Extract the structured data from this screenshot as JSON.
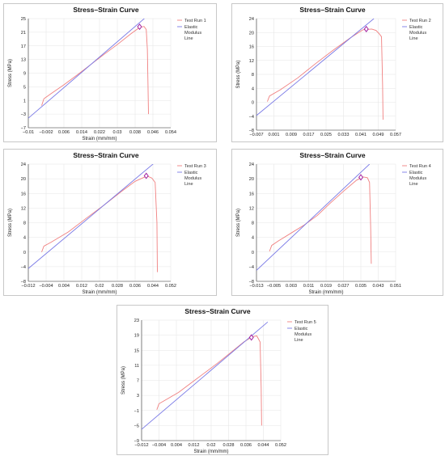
{
  "chart_data": [
    {
      "type": "line",
      "title": "Stress–Strain Curve",
      "xlabel": "Strain (mm/mm)",
      "ylabel": "Stress (MPa)",
      "xticks": [
        "−0.01",
        "−0.002",
        "0.006",
        "0.014",
        "0.022",
        "0.03",
        "0.038",
        "0.046",
        "0.054"
      ],
      "yticks": [
        "25",
        "21",
        "17",
        "13",
        "9",
        "5",
        "1",
        "−3",
        "−7"
      ],
      "xlim": [
        -0.01,
        0.054
      ],
      "ylim": [
        -7,
        25
      ],
      "legend_position": "top-right",
      "series": [
        {
          "name": "Test Run 1",
          "color": "#f08080",
          "x": [
            -0.004,
            -0.003,
            0.0,
            0.006,
            0.012,
            0.018,
            0.024,
            0.03,
            0.036,
            0.04,
            0.042,
            0.043,
            0.0435,
            0.0438,
            0.044
          ],
          "y": [
            -0.5,
            1.5,
            2.9,
            5.6,
            8.5,
            11.5,
            14.5,
            17.4,
            20.5,
            22.4,
            22.7,
            21.8,
            16.0,
            5.0,
            -3.0
          ]
        },
        {
          "name": "Elastic Modulus Line",
          "color": "#7a7ae6",
          "x": [
            -0.01,
            0.043
          ],
          "y": [
            -4.2,
            25.5
          ]
        }
      ],
      "marker": {
        "x": 0.04,
        "y": 22.6,
        "shape": "diamond",
        "color": "#a020a0"
      }
    },
    {
      "type": "line",
      "title": "Stress–Strain Curve",
      "xlabel": "",
      "ylabel": "Stress (MPa)",
      "xticks": [
        "−0.007",
        "0.001",
        "0.009",
        "0.017",
        "0.025",
        "0.033",
        "0.041",
        "0.049",
        "0.057"
      ],
      "yticks": [
        "24",
        "20",
        "16",
        "12",
        "8",
        "4",
        "0",
        "−4",
        "−8"
      ],
      "xlim": [
        -0.007,
        0.057
      ],
      "ylim": [
        -8,
        24
      ],
      "legend_position": "top-right",
      "series": [
        {
          "name": "Test Run 2",
          "color": "#f08080",
          "x": [
            -0.002,
            -0.001,
            0.004,
            0.012,
            0.02,
            0.028,
            0.036,
            0.042,
            0.046,
            0.048,
            0.0495,
            0.0505,
            0.051,
            0.0512
          ],
          "y": [
            0.2,
            1.8,
            3.6,
            7.0,
            11.0,
            14.8,
            18.4,
            20.8,
            21.0,
            20.6,
            19.6,
            18.8,
            5.0,
            -5.0
          ]
        },
        {
          "name": "Elastic Modulus Line",
          "color": "#7a7ae6",
          "x": [
            -0.007,
            0.047
          ],
          "y": [
            -3.8,
            24.0
          ]
        }
      ],
      "marker": {
        "x": 0.0435,
        "y": 21.0,
        "shape": "diamond",
        "color": "#a020a0"
      }
    },
    {
      "type": "line",
      "title": "Stress–Strain Curve",
      "xlabel": "Strain (mm/mm)",
      "ylabel": "Stress (MPa)",
      "xticks": [
        "−0.012",
        "−0.004",
        "0.004",
        "0.012",
        "0.02",
        "0.028",
        "0.036",
        "0.044",
        "0.052"
      ],
      "yticks": [
        "24",
        "20",
        "16",
        "12",
        "8",
        "4",
        "0",
        "−4",
        "−8"
      ],
      "xlim": [
        -0.012,
        0.052
      ],
      "ylim": [
        -8,
        24
      ],
      "legend_position": "top-right",
      "series": [
        {
          "name": "Test Run 3",
          "color": "#f08080",
          "x": [
            -0.006,
            -0.005,
            -0.002,
            0.006,
            0.014,
            0.022,
            0.03,
            0.036,
            0.04,
            0.042,
            0.0435,
            0.045,
            0.0458,
            0.046
          ],
          "y": [
            0.0,
            1.6,
            2.6,
            5.5,
            9.2,
            12.8,
            16.6,
            19.3,
            20.4,
            20.6,
            20.2,
            19.0,
            8.0,
            -5.5
          ]
        },
        {
          "name": "Elastic Modulus Line",
          "color": "#7a7ae6",
          "x": [
            -0.012,
            0.045
          ],
          "y": [
            -4.5,
            24.5
          ]
        }
      ],
      "marker": {
        "x": 0.041,
        "y": 20.8,
        "shape": "diamond",
        "color": "#a020a0"
      }
    },
    {
      "type": "line",
      "title": "Stress–Strain Curve",
      "xlabel": "Strain (mm/mm)",
      "ylabel": "Stress (MPa)",
      "xticks": [
        "−0.013",
        "−0.005",
        "0.003",
        "0.011",
        "0.019",
        "0.027",
        "0.035",
        "0.043",
        "0.051"
      ],
      "yticks": [
        "24",
        "20",
        "16",
        "12",
        "8",
        "4",
        "0",
        "−4",
        "−8"
      ],
      "xlim": [
        -0.013,
        0.051
      ],
      "ylim": [
        -8,
        24
      ],
      "legend_position": "top-right",
      "series": [
        {
          "name": "Test Run 4",
          "color": "#f08080",
          "x": [
            -0.007,
            -0.006,
            -0.003,
            0.003,
            0.009,
            0.015,
            0.021,
            0.027,
            0.033,
            0.036,
            0.038,
            0.039,
            0.0395,
            0.0398
          ],
          "y": [
            0.2,
            1.8,
            3.0,
            5.2,
            7.4,
            10.0,
            13.4,
            16.6,
            19.6,
            20.5,
            20.3,
            19.0,
            7.0,
            -3.2
          ]
        },
        {
          "name": "Elastic Modulus Line",
          "color": "#7a7ae6",
          "x": [
            -0.013,
            0.039
          ],
          "y": [
            -5.0,
            24.0
          ]
        }
      ],
      "marker": {
        "x": 0.035,
        "y": 20.4,
        "shape": "diamond",
        "color": "#a020a0"
      }
    },
    {
      "type": "line",
      "title": "Stress–Strain Curve",
      "xlabel": "Strain (mm/mm)",
      "ylabel": "Stress (MPa)",
      "xticks": [
        "−0.012",
        "−0.004",
        "0.004",
        "0.012",
        "0.02",
        "0.028",
        "0.036",
        "0.044",
        "0.052"
      ],
      "yticks": [
        "23",
        "19",
        "15",
        "11",
        "7",
        "3",
        "−1",
        "−5",
        "−9"
      ],
      "xlim": [
        -0.012,
        0.052
      ],
      "ylim": [
        -9,
        23
      ],
      "legend_position": "top-right",
      "series": [
        {
          "name": "Test Run 5",
          "color": "#f08080",
          "x": [
            -0.005,
            -0.004,
            -0.001,
            0.005,
            0.011,
            0.017,
            0.023,
            0.029,
            0.035,
            0.039,
            0.041,
            0.0425,
            0.043,
            0.0432
          ],
          "y": [
            -0.8,
            0.8,
            1.8,
            3.8,
            6.4,
            9.0,
            11.6,
            14.4,
            17.2,
            18.6,
            18.8,
            17.2,
            5.0,
            -5.0
          ]
        },
        {
          "name": "Elastic Modulus Line",
          "color": "#7a7ae6",
          "x": [
            -0.012,
            0.046
          ],
          "y": [
            -6.0,
            22.5
          ]
        }
      ],
      "marker": {
        "x": 0.0385,
        "y": 18.4,
        "shape": "diamond",
        "color": "#a020a0"
      }
    }
  ]
}
